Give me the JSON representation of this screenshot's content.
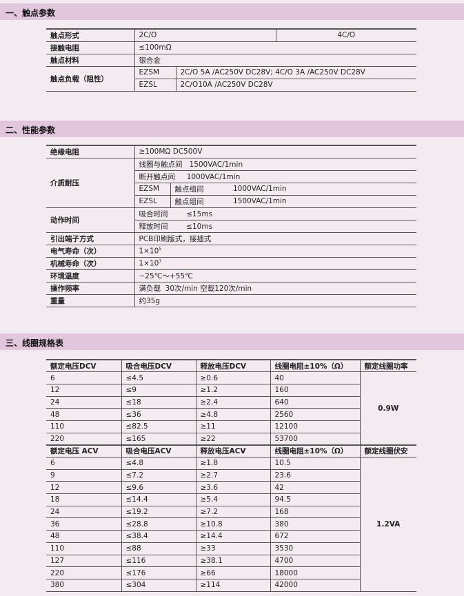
{
  "sections": [
    "一、触点参数",
    "二、性能参数",
    "三、线圈规格表"
  ],
  "contact": {
    "form_label": "触点形式",
    "form_2co": "2C/O",
    "form_4co": "4C/O",
    "resistance_label": "接触电阻",
    "resistance": "≤100mΩ",
    "material_label": "触点材料",
    "material": "银合金",
    "load_label": "触点负载（阻性）",
    "load": [
      {
        "model": "EZSM",
        "value": "2C/O  5A /AC250V  DC28V;   4C/O  3A /AC250V  DC28V"
      },
      {
        "model": "EZSL",
        "value": "2C/O10A /AC250V  DC28V"
      }
    ]
  },
  "perf": {
    "insulation_label": "绝缘电阻",
    "insulation": "≥100MΩ  DC500V",
    "dielectric_label": "介质耐压",
    "dielectric_coil": "线圈与触点间   1500VAC/1min",
    "dielectric_open": "断开触点间     1000VAC/1min",
    "dielectric_groups": [
      {
        "model": "EZSM",
        "label": "触点组间",
        "value": "1000VAC/1min"
      },
      {
        "model": "EZSL",
        "label": "触点组间",
        "value": "1500VAC/1min"
      }
    ],
    "action_label": "动作时间",
    "pickup": "吸合时间        ≤15ms",
    "release": "释放时间        ≤10ms",
    "terminal_label": "引出端子方式",
    "terminal": "PCB印刷版式，接插式",
    "elec_life_label": "电气寿命（次）",
    "elec_life_base": "1×10",
    "elec_life_exp": "5",
    "mech_life_label": "机械寿命（次）",
    "mech_life_base": "1×10",
    "mech_life_exp": "7",
    "temp_label": "环境温度",
    "temp": "−25℃～+55℃",
    "freq_label": "操作频率",
    "freq": "满负载  30次/min 空载120次/min",
    "weight_label": "重量",
    "weight": "约35g"
  },
  "coil": {
    "dc_headers": [
      "额定电压DCV",
      "吸合电压DCV",
      "释放电压DCV",
      "线圈电阻±10%（Ω）",
      "额定线圈功率"
    ],
    "dc_rows": [
      [
        "6",
        "≤4.5",
        "≥0.6",
        "40"
      ],
      [
        "12",
        "≤9",
        "≥1.2",
        "160"
      ],
      [
        "24",
        "≤18",
        "≥2.4",
        "640"
      ],
      [
        "48",
        "≤36",
        "≥4.8",
        "2560"
      ],
      [
        "110",
        "≤82.5",
        "≥11",
        "12100"
      ],
      [
        "220",
        "≤165",
        "≥22",
        "53700"
      ]
    ],
    "dc_power": "0.9W",
    "ac_headers": [
      "额定电压  ACV",
      "吸合电压ACV",
      "释放电压ACV",
      "线圈电阻±10%（Ω）",
      "额定线圈伏安"
    ],
    "ac_rows": [
      [
        "6",
        "≤4.8",
        "≥1.8",
        "10.5"
      ],
      [
        "9",
        "≤7.2",
        "≥2.7",
        "23.6"
      ],
      [
        "12",
        "≤9.6",
        "≥3.6",
        "42"
      ],
      [
        "18",
        "≤14.4",
        "≥5.4",
        "94.5"
      ],
      [
        "24",
        "≤19.2",
        "≥7.2",
        "168"
      ],
      [
        "36",
        "≤28.8",
        "≥10.8",
        "380"
      ],
      [
        "48",
        "≤38.4",
        "≥14.4",
        "672"
      ],
      [
        "110",
        "≤88",
        "≥33",
        "3530"
      ],
      [
        "127",
        "≤116",
        "≥38.1",
        "4700"
      ],
      [
        "220",
        "≤176",
        "≥66",
        "18000"
      ],
      [
        "380",
        "≤304",
        "≥114",
        "42000"
      ]
    ],
    "ac_power": "1.2VA"
  }
}
